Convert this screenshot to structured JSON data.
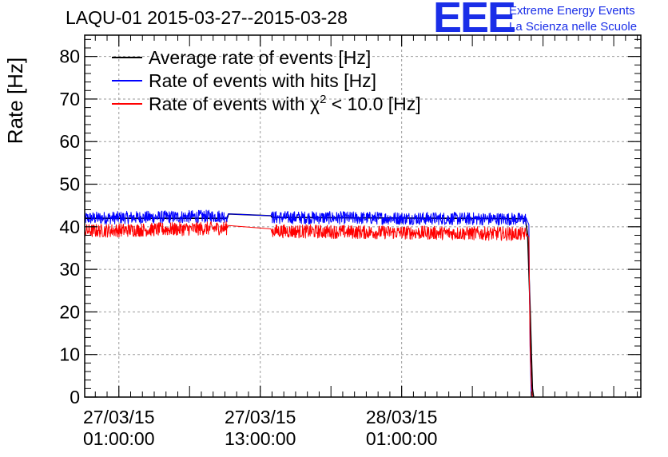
{
  "chart_data": {
    "type": "line",
    "title": "LAQU-01 2015-03-27--2015-03-28",
    "xlabel": "",
    "ylabel": "Rate [Hz]",
    "ylim": [
      0,
      85
    ],
    "yticks": [
      0,
      10,
      20,
      30,
      40,
      50,
      60,
      70,
      80
    ],
    "xlim_hours": [
      -2.9,
      44.3
    ],
    "xticks_hours": [
      0,
      12,
      24
    ],
    "xtick_labels": [
      [
        "27/03/15",
        "01:00:00"
      ],
      [
        "27/03/15",
        "13:00:00"
      ],
      [
        "28/03/15",
        "01:00:00"
      ]
    ],
    "grid": true,
    "legend_position": "top-left",
    "x_unit_note": "hours since 27/03/15 01:00:00",
    "series": [
      {
        "name": "Average rate of events [Hz]",
        "color": "#000000",
        "points": [
          [
            -3.0,
            42.0
          ],
          [
            9.2,
            42.0
          ],
          [
            9.3,
            43.0
          ],
          [
            12.9,
            42.6
          ],
          [
            13.0,
            42.2
          ],
          [
            34.5,
            41.9
          ],
          [
            34.7,
            38.0
          ],
          [
            34.9,
            21.0
          ],
          [
            35.0,
            11.0
          ],
          [
            35.1,
            2.0
          ],
          [
            35.2,
            0.0
          ]
        ]
      },
      {
        "name": "Rate of events with hits [Hz]",
        "color": "#0000ff",
        "points": [
          [
            -3.0,
            42.0
          ],
          [
            9.2,
            42.5
          ],
          [
            9.3,
            43.0
          ],
          [
            12.9,
            42.6
          ],
          [
            13.0,
            42.2
          ],
          [
            34.6,
            41.8
          ],
          [
            34.8,
            40.5
          ],
          [
            34.9,
            11.0
          ],
          [
            35.0,
            0.0
          ]
        ]
      },
      {
        "name": "Rate of events with χ² < 10.0 [Hz]",
        "color": "#ff0000",
        "points": [
          [
            -3.0,
            39.0
          ],
          [
            9.2,
            39.7
          ],
          [
            9.3,
            40.3
          ],
          [
            12.9,
            39.5
          ],
          [
            13.0,
            39.0
          ],
          [
            34.6,
            38.3
          ],
          [
            34.8,
            37.5
          ],
          [
            34.9,
            12.0
          ],
          [
            35.0,
            3.0
          ],
          [
            35.1,
            0.0
          ]
        ]
      }
    ],
    "legend": {
      "entries": [
        {
          "before": "Average rate of events [Hz]",
          "sup": "",
          "after": "",
          "color": "#000000"
        },
        {
          "before": "Rate of events with hits [Hz]",
          "sup": "",
          "after": "",
          "color": "#0000ff"
        },
        {
          "before": "Rate of events with χ",
          "sup": "2",
          "after": " < 10.0 [Hz]",
          "color": "#ff0000"
        }
      ]
    }
  },
  "logo": {
    "mark": "EEE",
    "line1": "Extreme Energy Events",
    "line2": "La Scienza nelle Scuole",
    "color": "#1a2ee8"
  }
}
